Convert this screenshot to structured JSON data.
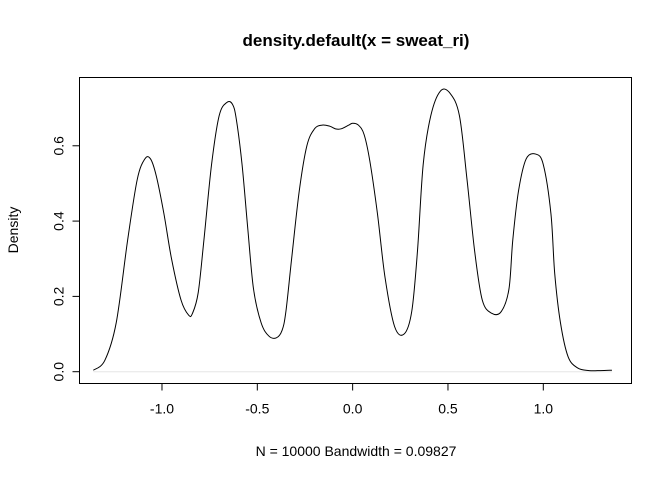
{
  "chart_data": {
    "type": "line",
    "title": "density.default(x = sweat_ri)",
    "xlabel": "N = 10000   Bandwidth = 0.09827",
    "ylabel": "Density",
    "xlim": [
      -1.43,
      1.46
    ],
    "ylim": [
      -0.03,
      0.78
    ],
    "x_ticks": [
      -1.0,
      -0.5,
      0.0,
      0.5,
      1.0
    ],
    "x_tick_labels": [
      "-1.0",
      "-0.5",
      "0.0",
      "0.5",
      "1.0"
    ],
    "y_ticks": [
      0.0,
      0.2,
      0.4,
      0.6
    ],
    "y_tick_labels": [
      "0.0",
      "0.2",
      "0.4",
      "0.6"
    ],
    "grid": false,
    "series": [
      {
        "x": [
          -1.36,
          -1.3,
          -1.24,
          -1.18,
          -1.13,
          -1.09,
          -1.06,
          -1.03,
          -0.99,
          -0.95,
          -0.9,
          -0.86,
          -0.84,
          -0.81,
          -0.78,
          -0.74,
          -0.7,
          -0.66,
          -0.63,
          -0.61,
          -0.58,
          -0.55,
          -0.52,
          -0.48,
          -0.44,
          -0.4,
          -0.37,
          -0.35,
          -0.32,
          -0.28,
          -0.24,
          -0.2,
          -0.16,
          -0.12,
          -0.09,
          -0.06,
          -0.02,
          0.0,
          0.03,
          0.06,
          0.09,
          0.13,
          0.17,
          0.22,
          0.27,
          0.31,
          0.34,
          0.37,
          0.41,
          0.46,
          0.51,
          0.56,
          0.6,
          0.64,
          0.68,
          0.73,
          0.78,
          0.82,
          0.84,
          0.87,
          0.91,
          0.96,
          1.0,
          1.04,
          1.06,
          1.09,
          1.13,
          1.18,
          1.24,
          1.3,
          1.36
        ],
        "y": [
          0.004,
          0.03,
          0.13,
          0.35,
          0.51,
          0.565,
          0.565,
          0.52,
          0.42,
          0.3,
          0.19,
          0.15,
          0.155,
          0.21,
          0.35,
          0.55,
          0.68,
          0.715,
          0.71,
          0.67,
          0.55,
          0.38,
          0.22,
          0.13,
          0.095,
          0.09,
          0.11,
          0.16,
          0.3,
          0.48,
          0.6,
          0.645,
          0.655,
          0.652,
          0.645,
          0.645,
          0.655,
          0.66,
          0.655,
          0.63,
          0.56,
          0.42,
          0.25,
          0.12,
          0.1,
          0.16,
          0.32,
          0.55,
          0.68,
          0.745,
          0.74,
          0.68,
          0.51,
          0.32,
          0.19,
          0.155,
          0.16,
          0.22,
          0.35,
          0.48,
          0.565,
          0.578,
          0.55,
          0.42,
          0.26,
          0.13,
          0.04,
          0.01,
          0.003,
          0.003,
          0.004
        ]
      }
    ]
  }
}
